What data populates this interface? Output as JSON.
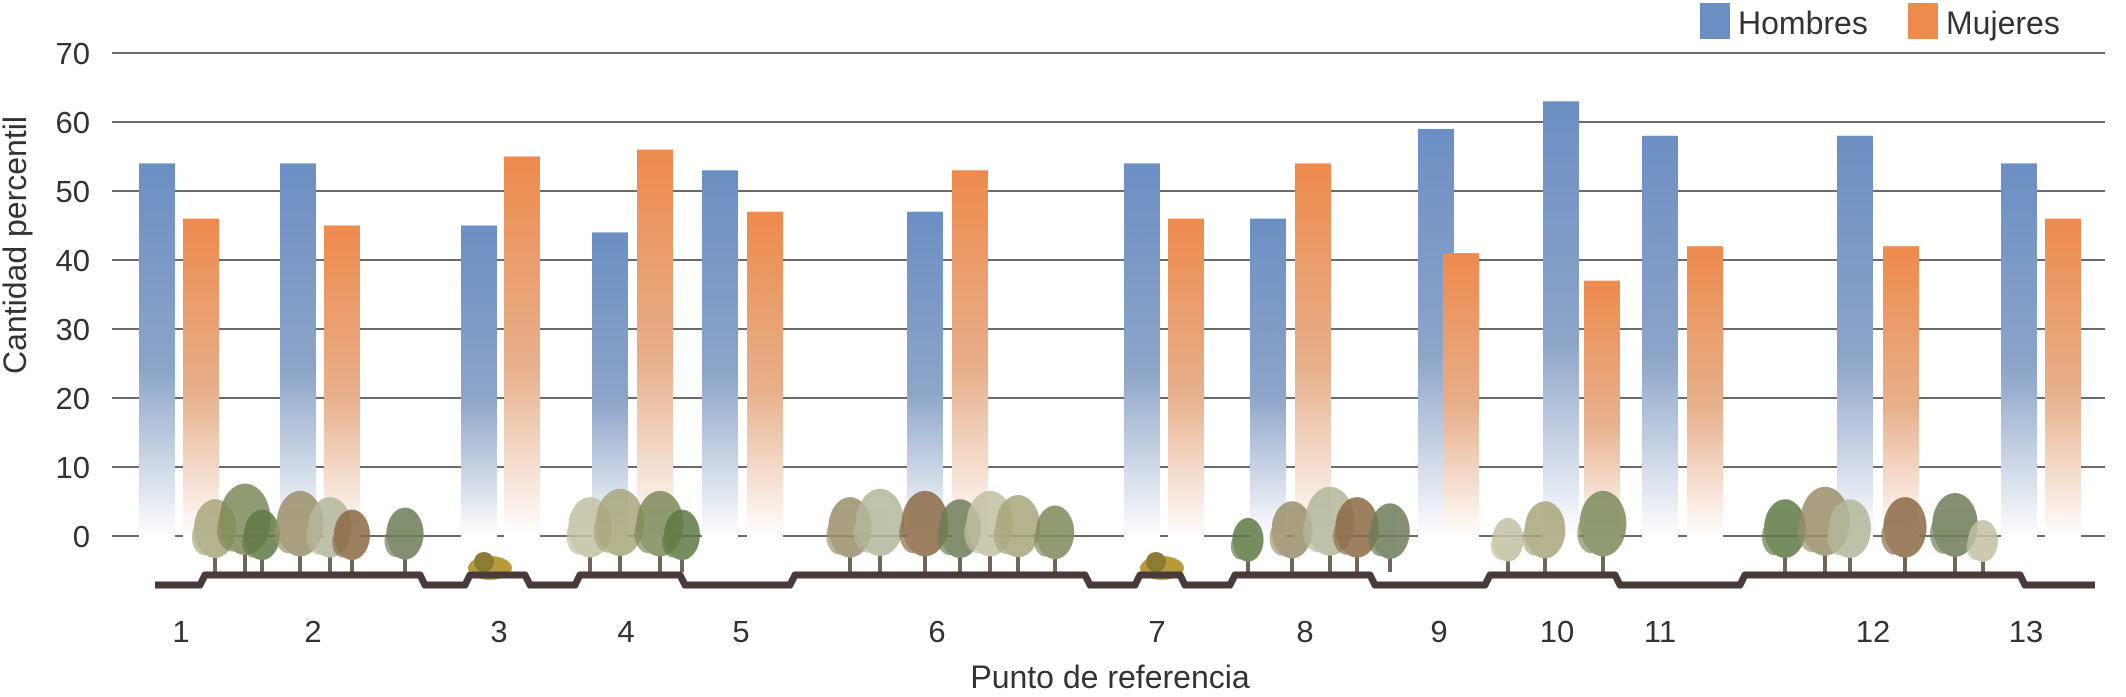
{
  "chart_data": {
    "type": "bar",
    "xlabel": "Punto de referencia",
    "ylabel": "Cantidad percentil",
    "ylim": [
      0,
      70
    ],
    "yticks": [
      0,
      10,
      20,
      30,
      40,
      50,
      60,
      70
    ],
    "grid": true,
    "legend_placement": "top-right",
    "categories": [
      "1",
      "2",
      "3",
      "4",
      "5",
      "6",
      "7",
      "8",
      "9",
      "10",
      "11",
      "12",
      "13"
    ],
    "series": [
      {
        "name": "Hombres",
        "color": "#6b8fc4",
        "values": [
          54,
          54,
          45,
          44,
          53,
          47,
          54,
          46,
          59,
          63,
          58,
          58,
          54
        ]
      },
      {
        "name": "Mujeres",
        "color": "#ee8a4c",
        "values": [
          46,
          45,
          55,
          56,
          47,
          53,
          46,
          54,
          41,
          37,
          42,
          42,
          46
        ]
      }
    ]
  }
}
